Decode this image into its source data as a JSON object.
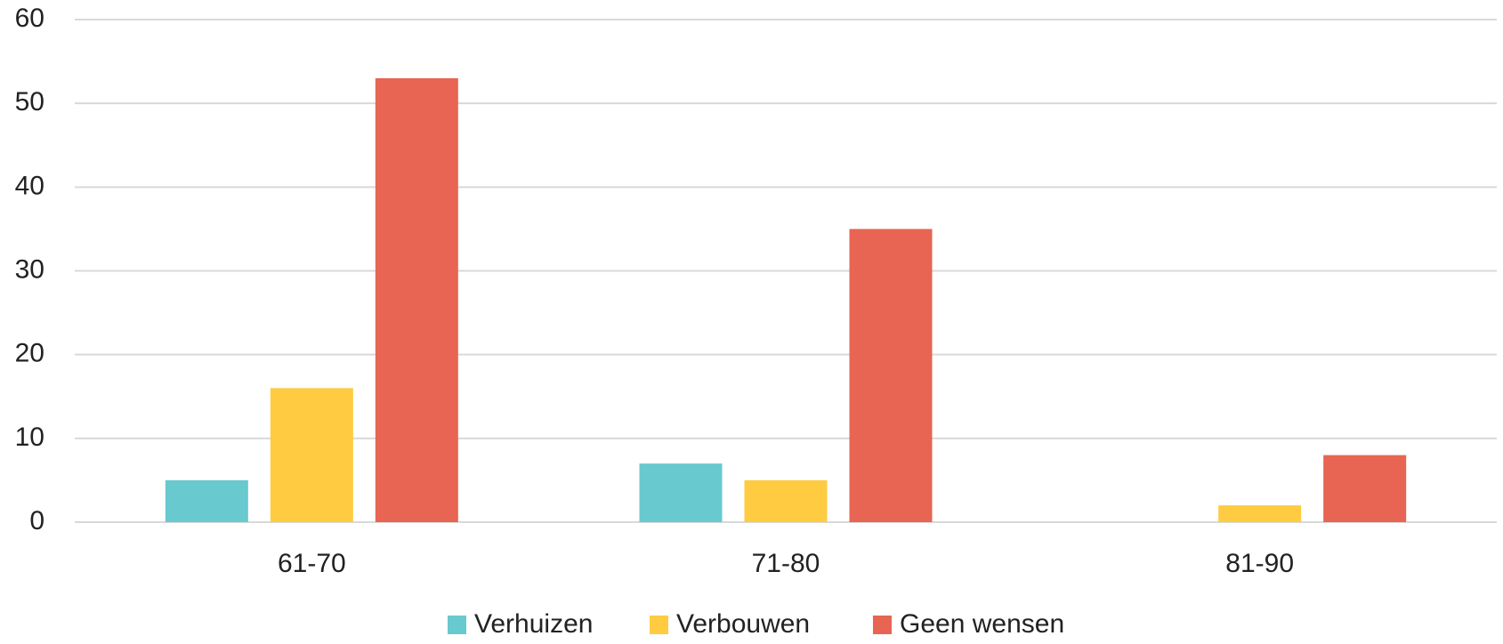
{
  "chart_data": {
    "type": "bar",
    "categories": [
      "61-70",
      "71-80",
      "81-90"
    ],
    "series": [
      {
        "name": "Verhuizen",
        "color": "#68c9cf",
        "values": [
          5,
          7,
          0
        ]
      },
      {
        "name": "Verbouwen",
        "color": "#fecb41",
        "values": [
          16,
          5,
          2
        ]
      },
      {
        "name": "Geen wensen",
        "color": "#e76552",
        "values": [
          53,
          35,
          8
        ]
      }
    ],
    "ylim": [
      0,
      60
    ],
    "yticks": [
      0,
      10,
      20,
      30,
      40,
      50,
      60
    ],
    "grid": true,
    "legend": "bottom"
  }
}
